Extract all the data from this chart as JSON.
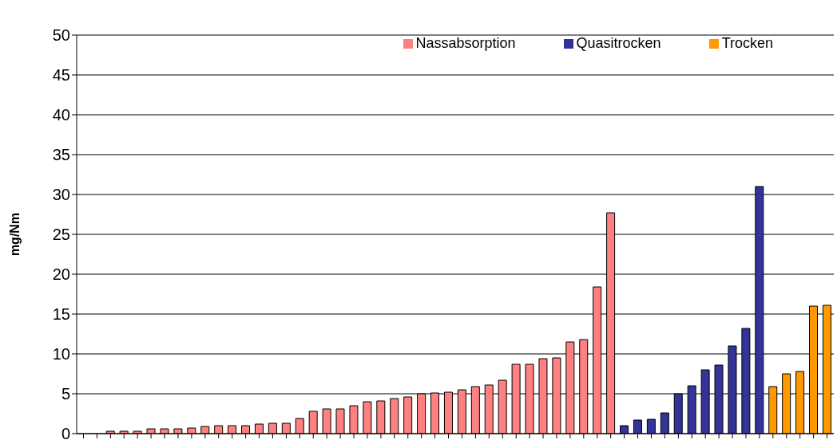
{
  "chart_data": {
    "type": "bar",
    "ylabel": "mg/Nm",
    "categories": [
      null,
      null,
      null,
      null,
      null,
      null,
      null,
      null,
      null,
      null,
      null,
      null,
      null,
      null,
      null,
      null,
      null,
      null,
      null,
      null,
      null,
      null,
      null,
      null,
      null,
      null,
      null,
      null,
      null,
      null,
      null,
      null,
      null,
      null,
      null,
      null,
      null,
      null,
      null,
      null,
      null,
      null,
      null,
      null,
      null,
      null,
      null,
      null,
      null,
      null,
      null,
      null,
      null,
      null,
      null,
      null
    ],
    "series": [
      {
        "name": "Nassabsorption",
        "color": "#ff8080",
        "values": [
          null,
          null,
          0.3,
          0.3,
          0.3,
          0.6,
          0.6,
          0.6,
          0.7,
          0.9,
          1.0,
          1.0,
          1.0,
          1.2,
          1.3,
          1.3,
          1.9,
          2.8,
          3.1,
          3.1,
          3.5,
          4.0,
          4.1,
          4.4,
          4.6,
          5.0,
          5.1,
          5.2,
          5.5,
          5.9,
          6.1,
          6.7,
          8.7,
          8.7,
          9.4,
          9.5,
          11.5,
          11.8,
          18.4,
          27.7,
          null,
          null,
          null,
          null,
          null,
          null,
          null,
          null,
          null,
          null,
          null,
          null,
          null,
          null,
          null,
          null
        ]
      },
      {
        "name": "Quasitrocken",
        "color": "#333399",
        "values": [
          null,
          null,
          null,
          null,
          null,
          null,
          null,
          null,
          null,
          null,
          null,
          null,
          null,
          null,
          null,
          null,
          null,
          null,
          null,
          null,
          null,
          null,
          null,
          null,
          null,
          null,
          null,
          null,
          null,
          null,
          null,
          null,
          null,
          null,
          null,
          null,
          null,
          null,
          null,
          null,
          1.0,
          1.7,
          1.8,
          2.6,
          5.0,
          6.0,
          8.0,
          8.6,
          11.0,
          13.2,
          31.0,
          null,
          null,
          null,
          null,
          null
        ]
      },
      {
        "name": "Trocken",
        "color": "#ff9900",
        "values": [
          null,
          null,
          null,
          null,
          null,
          null,
          null,
          null,
          null,
          null,
          null,
          null,
          null,
          null,
          null,
          null,
          null,
          null,
          null,
          null,
          null,
          null,
          null,
          null,
          null,
          null,
          null,
          null,
          null,
          null,
          null,
          null,
          null,
          null,
          null,
          null,
          null,
          null,
          null,
          null,
          null,
          null,
          null,
          null,
          null,
          null,
          null,
          null,
          null,
          null,
          null,
          5.9,
          7.5,
          7.8,
          16.0,
          16.1
        ]
      }
    ],
    "ylim": [
      0,
      50
    ],
    "yticks": [
      0,
      5,
      10,
      15,
      20,
      25,
      30,
      35,
      40,
      45,
      50
    ],
    "grid": "y",
    "legend": "top right"
  }
}
